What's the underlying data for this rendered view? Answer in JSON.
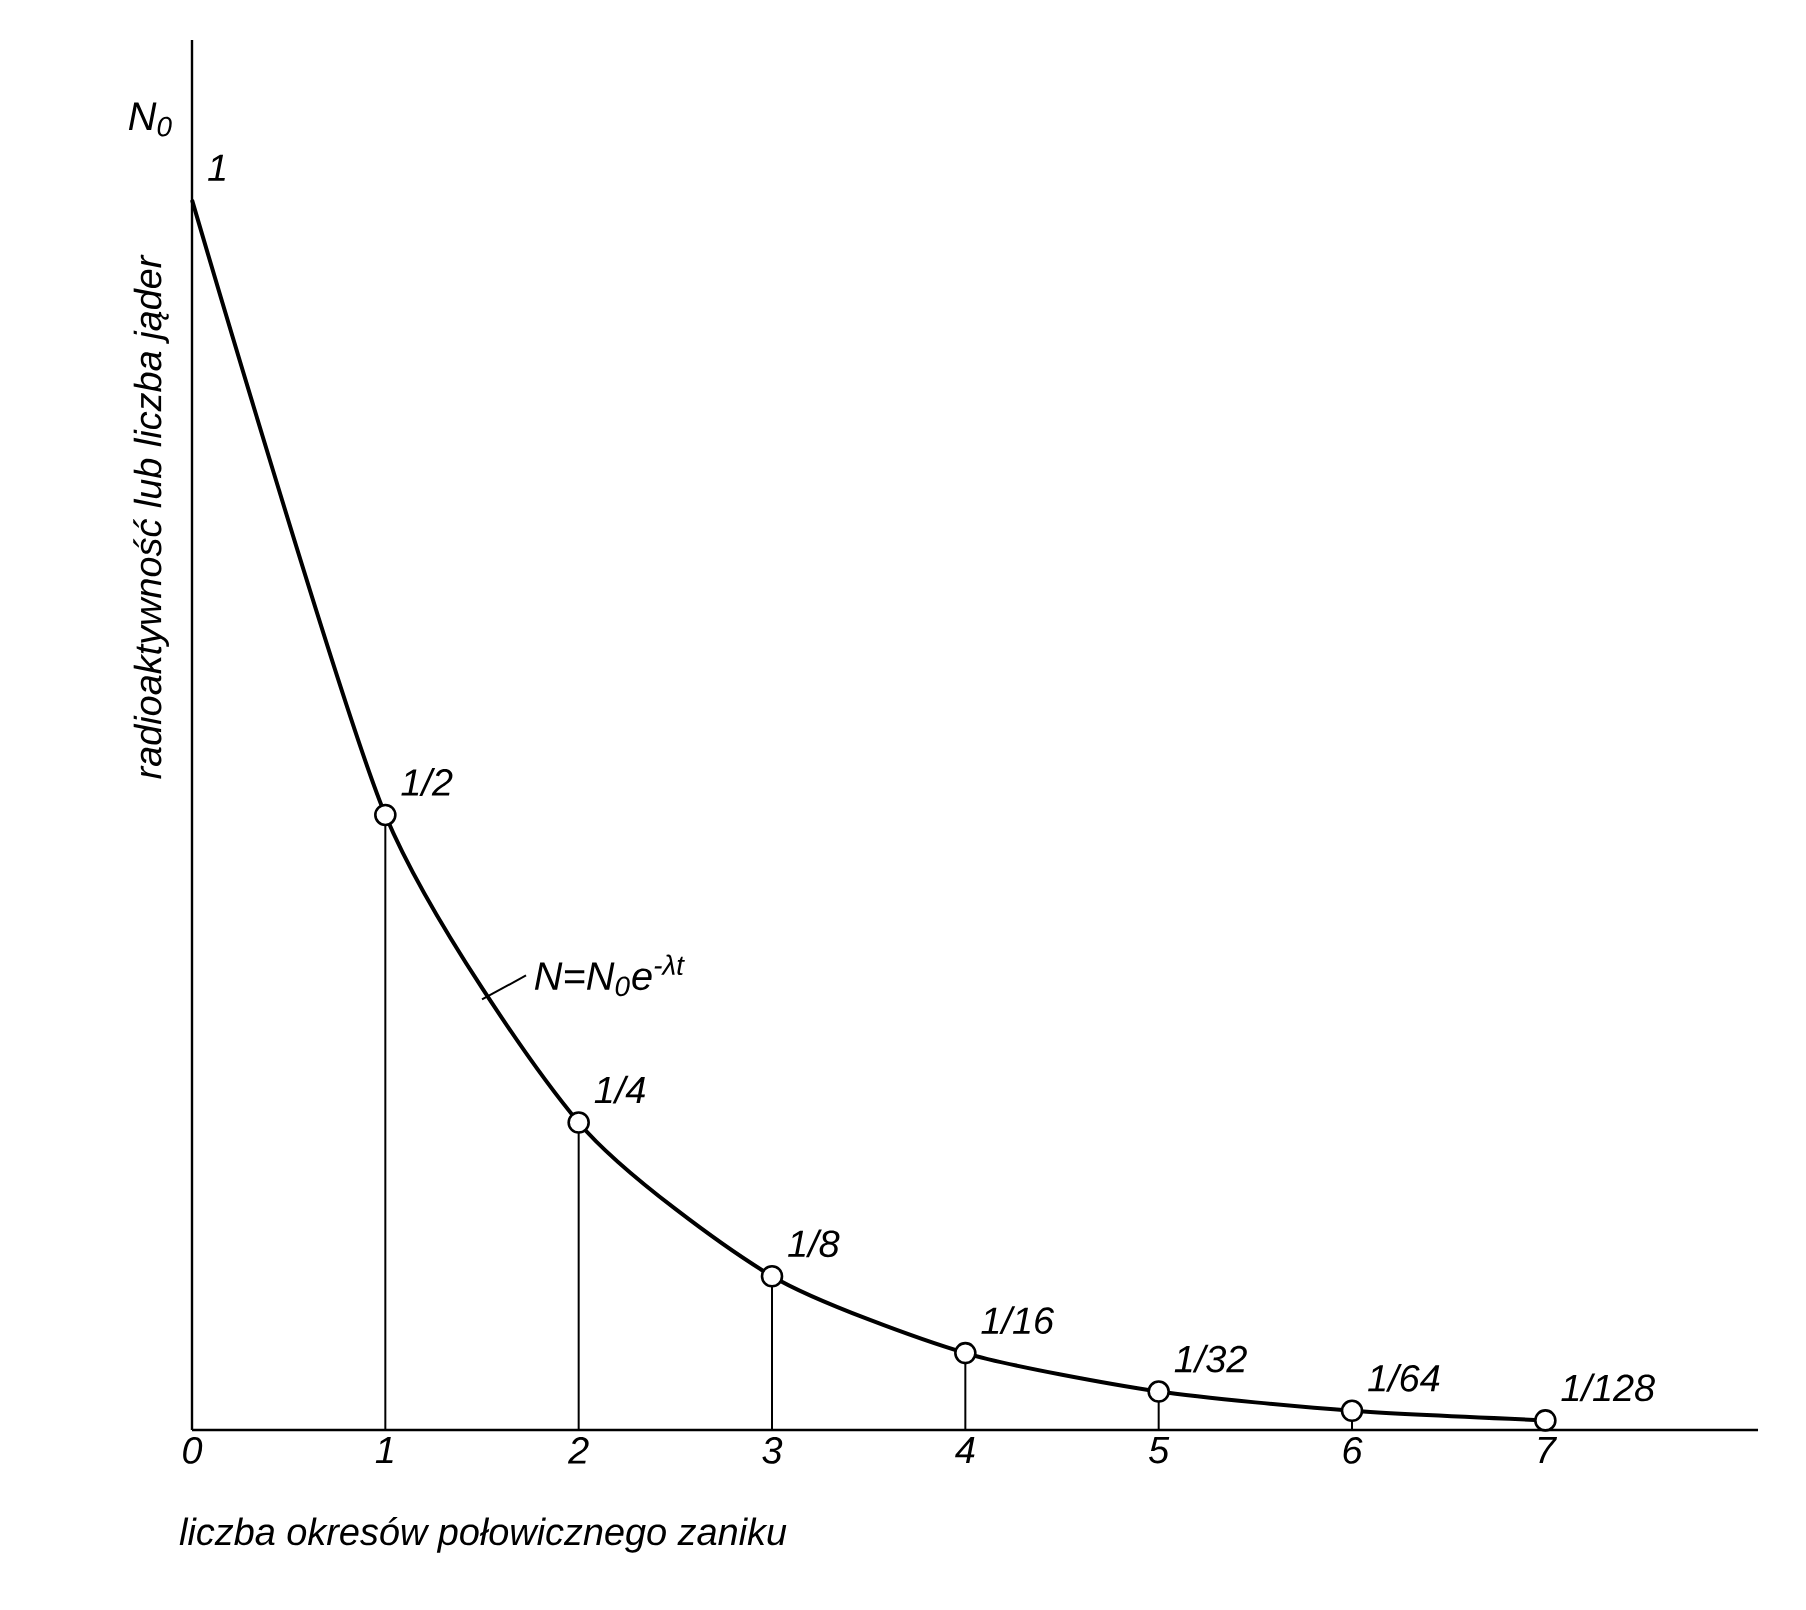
{
  "chart_data": {
    "type": "line",
    "xlabel": "liczba okresów połowicznego zaniku",
    "ylabel": "radioaktywność lub liczba jąder",
    "annotations": [
      "N$_{0}$",
      {
        "text": "N=N$_{0}$e$^{-λt}$",
        "x": 1.5,
        "y": 0.35
      }
    ],
    "xlim": [
      0,
      8.1
    ],
    "xticks": [
      0,
      1,
      2,
      3,
      4,
      5,
      6,
      7
    ],
    "ylim": [
      0,
      1.13
    ],
    "tick_labels": "x",
    "series": [
      {
        "color": "#000000",
        "marker": "none",
        "line_style": "solid",
        "x": [
          0,
          1,
          2,
          3,
          4,
          5,
          6,
          7
        ],
        "values": [
          1,
          0.5,
          0.25,
          0.125,
          0.0625,
          0.03125,
          0.015625,
          0.0078125
        ],
        "value_labels": [
          "1",
          "1/2",
          "1/4",
          "1/8",
          "1/16",
          "1/32",
          "1/64",
          "1/128"
        ]
      },
      {
        "type": "lollipop",
        "color": "#000000",
        "marker": "circle",
        "x": [
          1,
          2,
          3,
          4,
          5,
          6,
          7
        ],
        "values": [
          0.5,
          0.25,
          0.125,
          0.0625,
          0.03125,
          0.015625,
          0.0078125
        ]
      }
    ]
  }
}
